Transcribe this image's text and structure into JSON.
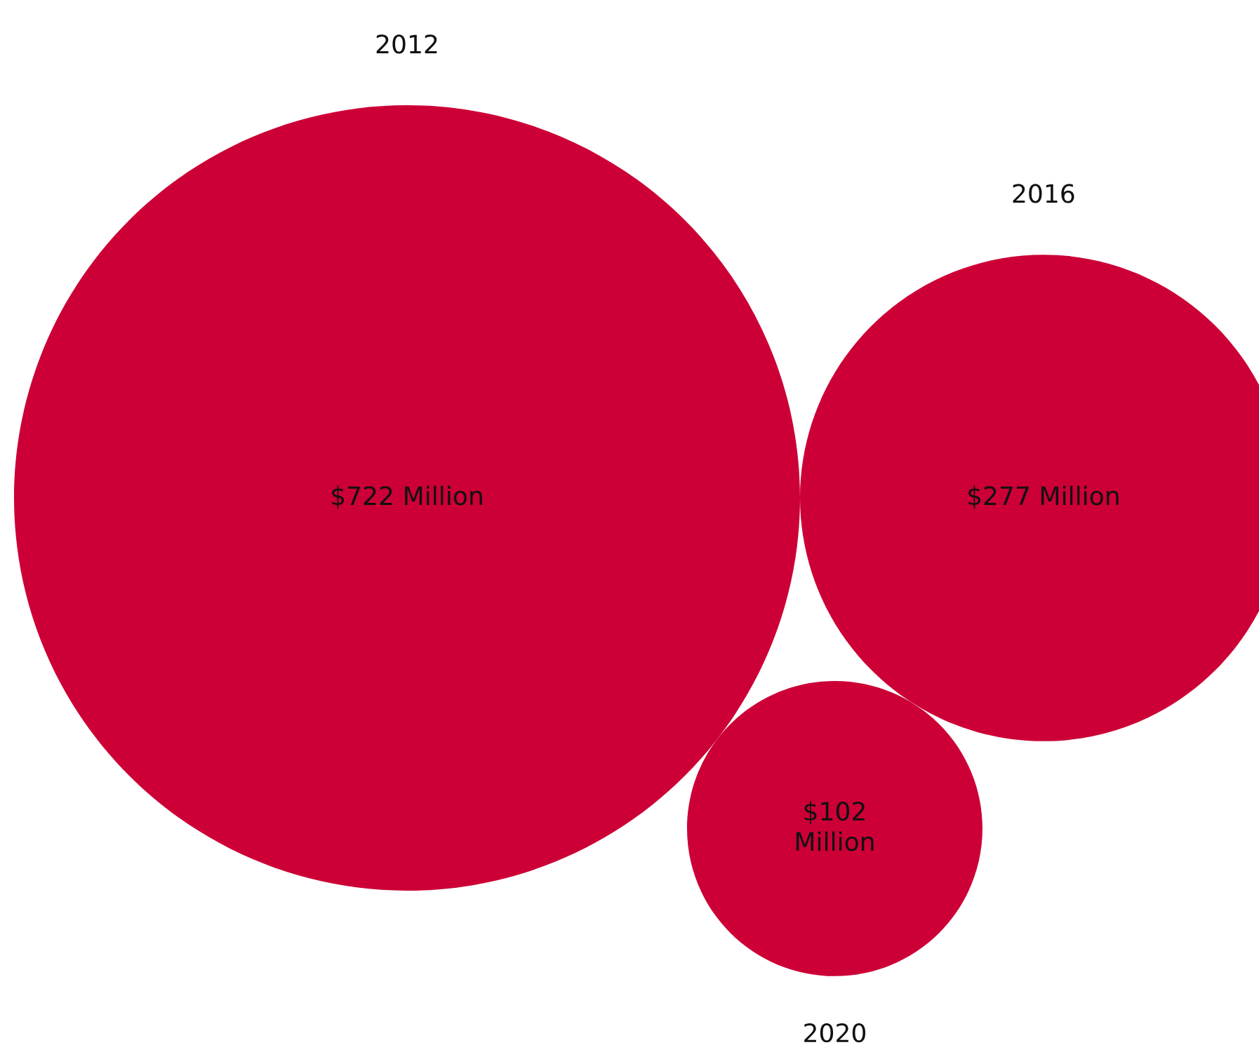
{
  "chart_data": {
    "type": "other",
    "categories": [
      "2012",
      "2016",
      "2020"
    ],
    "values": [
      722,
      277,
      102
    ],
    "value_labels": [
      "$722 Million",
      "$277 Million",
      "$102 Million"
    ],
    "color": "#cc0036"
  }
}
